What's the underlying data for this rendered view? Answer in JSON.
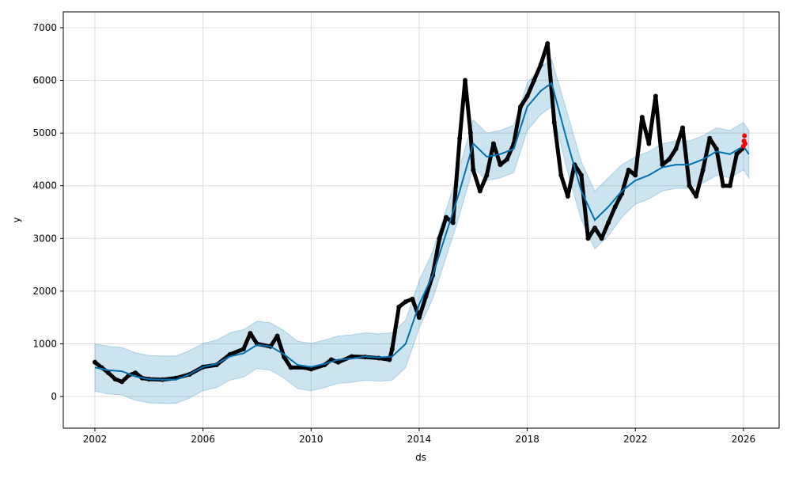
{
  "chart_data": {
    "type": "line",
    "title": "",
    "xlabel": "ds",
    "ylabel": "y",
    "xlim": [
      2000.83,
      2027.32
    ],
    "ylim": [
      -600,
      7300
    ],
    "grid": true,
    "x_ticks": [
      2002,
      2006,
      2010,
      2014,
      2018,
      2022,
      2026
    ],
    "x_tick_labels": [
      "2002",
      "2006",
      "2010",
      "2014",
      "2018",
      "2022",
      "2026"
    ],
    "y_ticks": [
      0,
      1000,
      2000,
      3000,
      4000,
      5000,
      6000,
      7000
    ],
    "y_tick_labels": [
      "0",
      "1000",
      "2000",
      "3000",
      "4000",
      "5000",
      "6000",
      "7000"
    ],
    "colors": {
      "forecast": "#0072B2",
      "band": "#0072B2",
      "actual": "#000000",
      "future": "#ff0000"
    },
    "forecast": {
      "x": [
        2002,
        2002.5,
        2003,
        2003.5,
        2004,
        2004.5,
        2005,
        2005.5,
        2006,
        2006.5,
        2007,
        2007.5,
        2008,
        2008.5,
        2009,
        2009.5,
        2010,
        2010.5,
        2011,
        2011.5,
        2012,
        2012.5,
        2013,
        2013.5,
        2014,
        2014.5,
        2015,
        2015.5,
        2016,
        2016.5,
        2017,
        2017.5,
        2018,
        2018.5,
        2018.9,
        2019.5,
        2020,
        2020.5,
        2021,
        2021.5,
        2022,
        2022.5,
        2023,
        2023.5,
        2024,
        2024.5,
        2025,
        2025.5,
        2026,
        2026.2
      ],
      "yhat": [
        550,
        500,
        480,
        380,
        330,
        320,
        320,
        420,
        560,
        620,
        760,
        820,
        980,
        950,
        800,
        600,
        560,
        620,
        700,
        720,
        760,
        740,
        760,
        1000,
        1750,
        2300,
        3100,
        3900,
        4800,
        4550,
        4600,
        4700,
        5500,
        5800,
        5950,
        4800,
        3900,
        3350,
        3600,
        3900,
        4100,
        4200,
        4350,
        4400,
        4400,
        4500,
        4650,
        4600,
        4750,
        4600
      ],
      "yhat_lower": [
        100,
        50,
        30,
        -70,
        -120,
        -130,
        -130,
        -30,
        110,
        170,
        310,
        370,
        530,
        500,
        350,
        150,
        110,
        170,
        250,
        270,
        310,
        290,
        310,
        550,
        1300,
        1850,
        2650,
        3450,
        4350,
        4100,
        4150,
        4250,
        5050,
        5350,
        5500,
        4250,
        3350,
        2800,
        3050,
        3400,
        3650,
        3750,
        3900,
        3950,
        3950,
        4050,
        4200,
        4150,
        4300,
        4150
      ],
      "yhat_upper": [
        1000,
        950,
        930,
        830,
        780,
        770,
        770,
        870,
        1010,
        1070,
        1210,
        1270,
        1430,
        1400,
        1250,
        1050,
        1010,
        1070,
        1150,
        1170,
        1210,
        1190,
        1210,
        1450,
        2200,
        2750,
        3550,
        4350,
        5250,
        5000,
        5050,
        5150,
        5950,
        6250,
        6400,
        5350,
        4450,
        3900,
        4150,
        4400,
        4550,
        4650,
        4800,
        4850,
        4850,
        4950,
        5100,
        5050,
        5200,
        5050
      ]
    },
    "actual": {
      "x": [
        2002,
        2002.25,
        2002.5,
        2002.75,
        2003,
        2003.25,
        2003.5,
        2003.75,
        2004,
        2004.5,
        2005,
        2005.5,
        2006,
        2006.5,
        2007,
        2007.5,
        2007.75,
        2008,
        2008.5,
        2008.75,
        2009,
        2009.25,
        2009.75,
        2010,
        2010.5,
        2010.75,
        2011,
        2011.5,
        2012,
        2012.5,
        2012.9,
        2013,
        2013.25,
        2013.5,
        2013.75,
        2014,
        2014.25,
        2014.5,
        2014.75,
        2015,
        2015.25,
        2015.5,
        2015.7,
        2015.9,
        2016,
        2016.25,
        2016.5,
        2016.75,
        2017,
        2017.25,
        2017.5,
        2017.75,
        2018,
        2018.25,
        2018.5,
        2018.75,
        2019,
        2019.25,
        2019.5,
        2019.75,
        2020,
        2020.25,
        2020.5,
        2020.75,
        2021,
        2021.25,
        2021.5,
        2021.75,
        2022,
        2022.25,
        2022.5,
        2022.75,
        2023,
        2023.25,
        2023.5,
        2023.75,
        2024,
        2024.25,
        2024.5,
        2024.75,
        2025,
        2025.25,
        2025.5,
        2025.75,
        2025.95
      ],
      "y": [
        650,
        550,
        450,
        330,
        280,
        400,
        450,
        350,
        330,
        320,
        350,
        420,
        560,
        600,
        800,
        900,
        1200,
        1000,
        950,
        1150,
        750,
        550,
        550,
        520,
        600,
        700,
        650,
        760,
        750,
        730,
        700,
        900,
        1700,
        1800,
        1850,
        1500,
        1900,
        2300,
        3000,
        3400,
        3300,
        4900,
        6000,
        5000,
        4300,
        3900,
        4200,
        4800,
        4400,
        4500,
        4800,
        5500,
        5700,
        6000,
        6300,
        6700,
        5200,
        4200,
        3800,
        4400,
        4200,
        3000,
        3200,
        3000,
        3300,
        3600,
        3850,
        4300,
        4200,
        5300,
        4800,
        5700,
        4400,
        4500,
        4700,
        5100,
        4000,
        3800,
        4300,
        4900,
        4700,
        4000,
        4000,
        4600,
        4700
      ]
    },
    "future_points": {
      "x": [
        2026.0,
        2026.02,
        2026.04,
        2026.06
      ],
      "y": [
        4750,
        4850,
        4950,
        4800
      ]
    }
  }
}
